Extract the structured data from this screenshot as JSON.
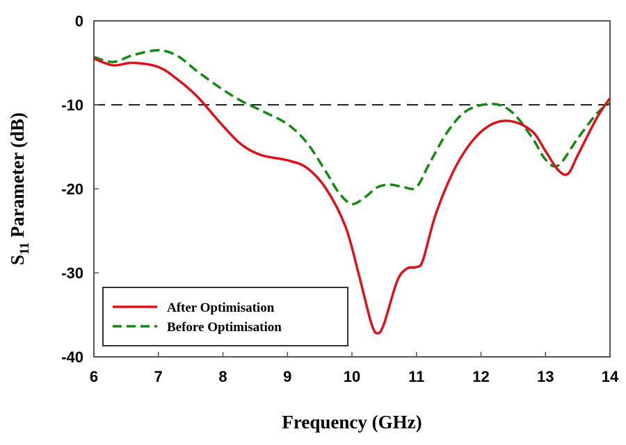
{
  "chart_data": {
    "type": "line",
    "title": "",
    "xlabel": "Frequency (GHz)",
    "ylabel_main": "S",
    "ylabel_sub": "11",
    "ylabel_rest": " Parameter (dB)",
    "xlim": [
      6,
      14
    ],
    "ylim": [
      -40,
      0
    ],
    "xticks": [
      "6",
      "7",
      "8",
      "9",
      "10",
      "11",
      "12",
      "13",
      "14"
    ],
    "yticks": [
      "0",
      "-10",
      "-20",
      "-30",
      "-40"
    ],
    "reference_line": {
      "y": -10,
      "style": "dashed",
      "color": "#000000"
    },
    "legend_position": "bottom-left",
    "series": [
      {
        "name": "After Optimisation",
        "color": "#e0101a",
        "style": "solid",
        "x": [
          6.0,
          6.3,
          6.6,
          7.0,
          7.3,
          7.6,
          8.0,
          8.3,
          8.6,
          9.0,
          9.3,
          9.6,
          9.9,
          10.1,
          10.3,
          10.4,
          10.5,
          10.7,
          10.85,
          11.0,
          11.1,
          11.3,
          11.6,
          11.9,
          12.2,
          12.5,
          12.8,
          13.0,
          13.2,
          13.35,
          13.5,
          13.8,
          14.0
        ],
        "values": [
          -4.5,
          -5.3,
          -5.0,
          -5.5,
          -7.0,
          -9.0,
          -12.5,
          -14.8,
          -16.0,
          -16.6,
          -17.5,
          -20.0,
          -24.5,
          -30.0,
          -36.0,
          -37.2,
          -36.0,
          -31.0,
          -29.5,
          -29.3,
          -28.5,
          -23.0,
          -17.5,
          -14.0,
          -12.2,
          -12.0,
          -13.2,
          -15.5,
          -17.8,
          -18.2,
          -16.0,
          -11.5,
          -9.2
        ]
      },
      {
        "name": "Before Optimisation",
        "color": "#128a12",
        "style": "dashed",
        "x": [
          6.0,
          6.3,
          6.6,
          7.0,
          7.3,
          7.6,
          8.0,
          8.3,
          8.6,
          9.0,
          9.3,
          9.6,
          9.8,
          10.0,
          10.2,
          10.4,
          10.6,
          10.8,
          11.0,
          11.2,
          11.5,
          11.8,
          12.2,
          12.5,
          12.8,
          13.0,
          13.2,
          13.5,
          13.8,
          14.0
        ],
        "values": [
          -4.3,
          -4.9,
          -4.1,
          -3.5,
          -4.2,
          -6.0,
          -8.2,
          -9.6,
          -10.7,
          -12.3,
          -14.5,
          -18.0,
          -20.5,
          -21.8,
          -21.0,
          -19.8,
          -19.5,
          -19.8,
          -19.8,
          -17.0,
          -13.0,
          -10.6,
          -9.9,
          -11.0,
          -14.0,
          -16.5,
          -17.2,
          -14.0,
          -11.0,
          -9.8
        ]
      }
    ]
  }
}
